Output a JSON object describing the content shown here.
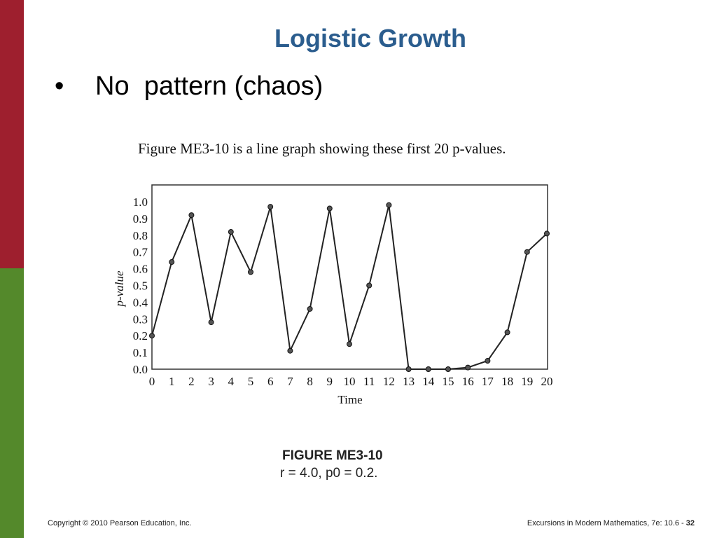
{
  "slide": {
    "title": "Logistic Growth",
    "bullet_symbol": "•",
    "bullet": "No  pattern (chaos)",
    "caption_top": "Figure ME3-10 is a line graph showing these first 20 p-values.",
    "figure_label": "FIGURE ME3-10",
    "figure_params": "r = 4.0, p0 = 0.2.",
    "footer_left": "Copyright © 2010 Pearson Education, Inc.",
    "footer_right": "Excursions in Modern Mathematics, 7e: 10.6 - ",
    "page_number": "32"
  },
  "colors": {
    "accent_red": "#9e1f2e",
    "accent_green": "#54892b",
    "title_blue": "#2b5d8e"
  },
  "chart_data": {
    "type": "line",
    "xlabel": "Time",
    "ylabel": "p-value",
    "x": [
      0,
      1,
      2,
      3,
      4,
      5,
      6,
      7,
      8,
      9,
      10,
      11,
      12,
      13,
      14,
      15,
      16,
      17,
      18,
      19,
      20
    ],
    "values": [
      0.2,
      0.64,
      0.92,
      0.28,
      0.82,
      0.58,
      0.97,
      0.11,
      0.36,
      0.96,
      0.15,
      0.5,
      0.98,
      0.0,
      0.0,
      0.0,
      0.01,
      0.05,
      0.22,
      0.7,
      0.81
    ],
    "x_ticks": [
      "0",
      "1",
      "2",
      "3",
      "4",
      "5",
      "6",
      "7",
      "8",
      "9",
      "10",
      "11",
      "12",
      "13",
      "14",
      "15",
      "16",
      "17",
      "18",
      "19",
      "20"
    ],
    "y_ticks": [
      "0.0",
      "0.1",
      "0.2",
      "0.3",
      "0.4",
      "0.5",
      "0.6",
      "0.7",
      "0.8",
      "0.9",
      "1.0"
    ],
    "xlim": [
      0,
      20
    ],
    "ylim": [
      0,
      1.0
    ],
    "grid": false
  }
}
